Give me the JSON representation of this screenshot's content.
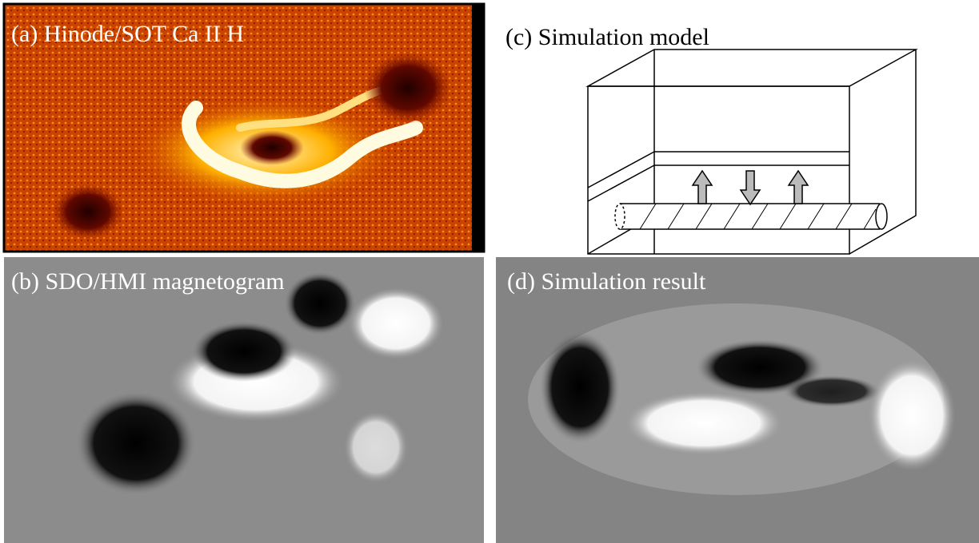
{
  "panels": [
    {
      "label": "(a) Hinode/SOT Ca II H"
    },
    {
      "label": "(b) SDO/HMI magnetogram"
    },
    {
      "label": "(c) Simulation model"
    },
    {
      "label": "(d) Simulation result"
    }
  ]
}
